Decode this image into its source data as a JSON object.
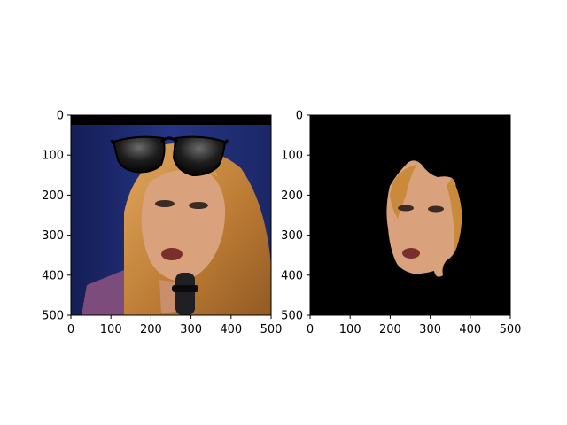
{
  "figure": {
    "panels": [
      {
        "name": "left",
        "image": "face photo with sunglasses overlay",
        "x_ticks": [
          "0",
          "100",
          "200",
          "300",
          "400",
          "500"
        ],
        "y_ticks": [
          "0",
          "100",
          "200",
          "300",
          "400",
          "500"
        ]
      },
      {
        "name": "right",
        "image": "segmented face on black background",
        "x_ticks": [
          "0",
          "100",
          "200",
          "300",
          "400",
          "500"
        ],
        "y_ticks": [
          "0",
          "100",
          "200",
          "300",
          "400",
          "500"
        ]
      }
    ]
  },
  "colors": {
    "background_studio": "#1f2a66",
    "hair": "#c98a3c",
    "skin": "#d9a27d",
    "black_mask": "#000000"
  }
}
